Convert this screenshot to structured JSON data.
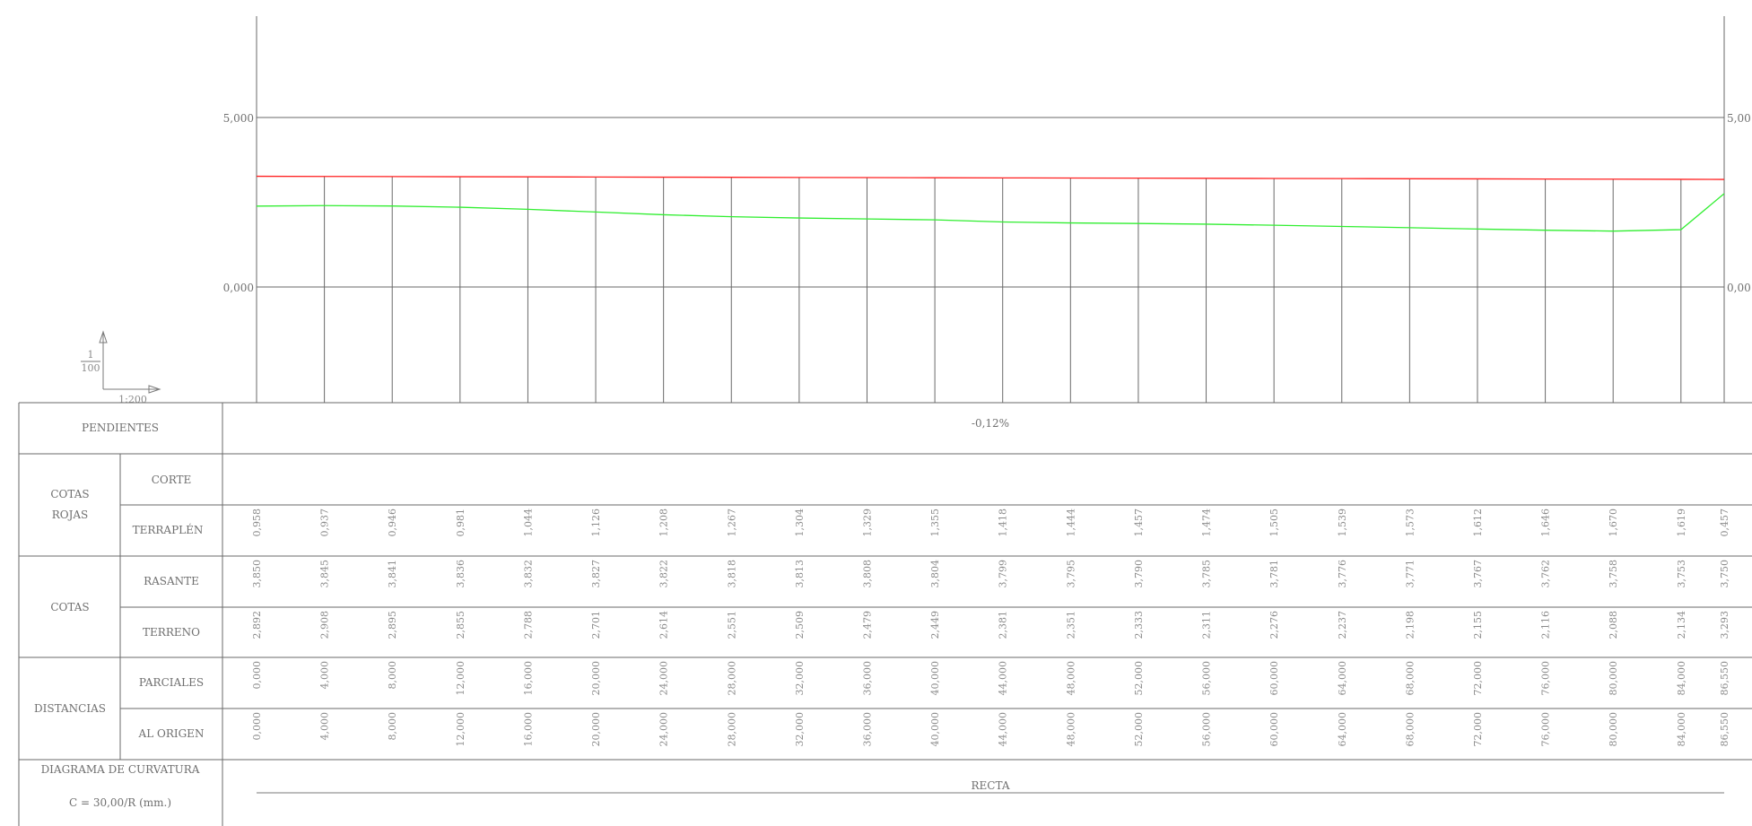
{
  "profile": {
    "elev_ticks": [
      {
        "label": "5,000",
        "value": 5
      },
      {
        "label": "0,000",
        "value": 0
      }
    ],
    "right_tick_label": "5,00",
    "right_tick_label_low": "0,00",
    "scale_vertical_num": "1",
    "scale_vertical_den": "100",
    "scale_horizontal": "1:200",
    "colors": {
      "rasante": "#ff2020",
      "terreno": "#30ee30",
      "lines": "#6a6a6a"
    }
  },
  "chart_data": {
    "type": "line",
    "x_unit": "m",
    "stations": [
      0,
      4,
      8,
      12,
      16,
      20,
      24,
      28,
      32,
      36,
      40,
      44,
      48,
      52,
      56,
      60,
      64,
      68,
      72,
      76,
      80,
      84,
      86.55
    ],
    "series": [
      {
        "key": "rasante",
        "values": [
          3.85,
          3.845,
          3.841,
          3.836,
          3.832,
          3.827,
          3.822,
          3.818,
          3.813,
          3.808,
          3.804,
          3.799,
          3.795,
          3.79,
          3.785,
          3.781,
          3.776,
          3.771,
          3.767,
          3.762,
          3.758,
          3.753,
          3.75
        ]
      },
      {
        "key": "terreno",
        "values": [
          2.892,
          2.908,
          2.895,
          2.855,
          2.788,
          2.701,
          2.614,
          2.551,
          2.509,
          2.479,
          2.449,
          2.381,
          2.351,
          2.333,
          2.311,
          2.276,
          2.237,
          2.198,
          2.155,
          2.116,
          2.088,
          2.134,
          3.293
        ]
      }
    ],
    "ylim": [
      -3.43,
      9.0
    ],
    "grid_y": [
      5,
      0
    ]
  },
  "guitar": {
    "pendientes": {
      "label": "PENDIENTES",
      "value": "-0,12%"
    },
    "cotas_rojas": {
      "label_line1": "COTAS",
      "label_line2": "ROJAS",
      "corte_label": "CORTE",
      "terraplen_label": "TERRAPLÉN",
      "terraplen_values": [
        "0,958",
        "0,937",
        "0,946",
        "0,981",
        "1,044",
        "1,126",
        "1,208",
        "1,267",
        "1,304",
        "1,329",
        "1,355",
        "1,418",
        "1,444",
        "1,457",
        "1,474",
        "1,505",
        "1,539",
        "1,573",
        "1,612",
        "1,646",
        "1,670",
        "1,619",
        "0,457"
      ]
    },
    "cotas": {
      "label": "COTAS",
      "rasante_label": "RASANTE",
      "rasante_values": [
        "3,850",
        "3,845",
        "3,841",
        "3,836",
        "3,832",
        "3,827",
        "3,822",
        "3,818",
        "3,813",
        "3,808",
        "3,804",
        "3,799",
        "3,795",
        "3,790",
        "3,785",
        "3,781",
        "3,776",
        "3,771",
        "3,767",
        "3,762",
        "3,758",
        "3,753",
        "3,750"
      ],
      "terreno_label": "TERRENO",
      "terreno_values": [
        "2,892",
        "2,908",
        "2,895",
        "2,855",
        "2,788",
        "2,701",
        "2,614",
        "2,551",
        "2,509",
        "2,479",
        "2,449",
        "2,381",
        "2,351",
        "2,333",
        "2,311",
        "2,276",
        "2,237",
        "2,198",
        "2,155",
        "2,116",
        "2,088",
        "2,134",
        "3,293"
      ]
    },
    "distancias": {
      "label": "DISTANCIAS",
      "parciales_label": "PARCIALES",
      "parciales_values": [
        "0,000",
        "4,000",
        "8,000",
        "12,000",
        "16,000",
        "20,000",
        "24,000",
        "28,000",
        "32,000",
        "36,000",
        "40,000",
        "44,000",
        "48,000",
        "52,000",
        "56,000",
        "60,000",
        "64,000",
        "68,000",
        "72,000",
        "76,000",
        "80,000",
        "84,000",
        "86,550"
      ],
      "origen_label": "AL ORIGEN",
      "origen_values": [
        "0,000",
        "4,000",
        "8,000",
        "12,000",
        "16,000",
        "20,000",
        "24,000",
        "28,000",
        "32,000",
        "36,000",
        "40,000",
        "44,000",
        "48,000",
        "52,000",
        "56,000",
        "60,000",
        "64,000",
        "68,000",
        "72,000",
        "76,000",
        "80,000",
        "84,000",
        "86,550"
      ]
    },
    "curvatura": {
      "label": "DIAGRAMA DE CURVATURA",
      "formula": "C = 30,00/R (mm.)",
      "value": "RECTA"
    }
  }
}
